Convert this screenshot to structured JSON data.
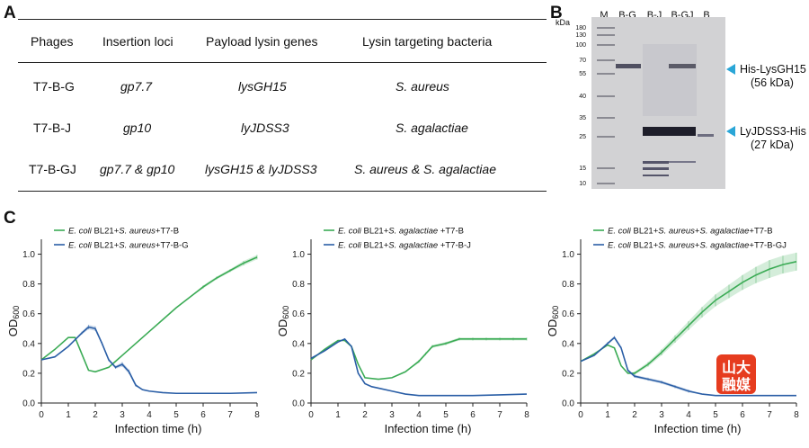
{
  "panels": {
    "a": "A",
    "b": "B",
    "c": "C"
  },
  "table": {
    "headers": [
      "Phages",
      "Insertion loci",
      "Payload lysin genes",
      "Lysin targeting bacteria"
    ],
    "rows": [
      [
        "T7-B-G",
        "gp7.7",
        "lysGH15",
        "S. aureus"
      ],
      [
        "T7-B-J",
        "gp10",
        "lyJDSS3",
        "S. agalactiae"
      ],
      [
        "T7-B-GJ",
        "gp7.7 & gp10",
        "lysGH15 & lyJDSS3",
        "S. aureus & S. agalactiae"
      ]
    ]
  },
  "gel": {
    "unit": "kDa",
    "lanes": [
      "M",
      "B-G",
      "B-J",
      "B-GJ",
      "B"
    ],
    "markers": [
      "180",
      "130",
      "100",
      "70",
      "55",
      "40",
      "35",
      "25",
      "15",
      "10"
    ],
    "annotations": [
      {
        "line1": "His-LysGH15",
        "line2": "(56 kDa)"
      },
      {
        "line1": "LyJDSS3-His",
        "line2": "(27 kDa)"
      }
    ],
    "arrow_color": "#2aa6d7"
  },
  "colors": {
    "green": "#3bab55",
    "blue": "#2a5ea6"
  },
  "logo": {
    "top": "山大",
    "bottom": "融媒"
  },
  "chart_data": [
    {
      "type": "line",
      "xlabel": "Infection time (h)",
      "ylabel": "OD600",
      "xlim": [
        0,
        8
      ],
      "ylim": [
        0,
        1.1
      ],
      "xticks": [
        "0",
        "1",
        "2",
        "3",
        "4",
        "5",
        "6",
        "7",
        "8"
      ],
      "yticks": [
        "0.0",
        "0.2",
        "0.4",
        "0.6",
        "0.8",
        "1.0"
      ],
      "series": [
        {
          "name": "E. coli BL21+S. aureus+T7-B",
          "color": "#3bab55",
          "x": [
            0,
            0.5,
            1,
            1.25,
            1.5,
            1.75,
            2,
            2.5,
            3,
            3.5,
            4,
            4.5,
            5,
            5.5,
            6,
            6.5,
            7,
            7.5,
            8
          ],
          "y": [
            0.29,
            0.36,
            0.44,
            0.44,
            0.33,
            0.22,
            0.21,
            0.24,
            0.32,
            0.4,
            0.48,
            0.56,
            0.64,
            0.71,
            0.78,
            0.84,
            0.89,
            0.94,
            0.98
          ],
          "err": [
            0,
            0,
            0,
            0,
            0,
            0,
            0,
            0,
            0,
            0,
            0,
            0,
            0,
            0,
            0.01,
            0.01,
            0.01,
            0.015,
            0.015
          ]
        },
        {
          "name": "E. coli BL21+S. aureus+T7-B-G",
          "color": "#2a5ea6",
          "x": [
            0,
            0.5,
            1,
            1.5,
            1.75,
            2,
            2.25,
            2.5,
            2.75,
            3,
            3.25,
            3.5,
            3.75,
            4,
            4.5,
            5,
            6,
            7,
            8
          ],
          "y": [
            0.29,
            0.31,
            0.38,
            0.47,
            0.51,
            0.5,
            0.4,
            0.29,
            0.24,
            0.26,
            0.21,
            0.12,
            0.09,
            0.08,
            0.07,
            0.065,
            0.065,
            0.065,
            0.07
          ],
          "err": [
            0,
            0,
            0,
            0.01,
            0.015,
            0.015,
            0.01,
            0.01,
            0.01,
            0.015,
            0.015,
            0.01,
            0,
            0,
            0,
            0,
            0,
            0,
            0
          ]
        }
      ]
    },
    {
      "type": "line",
      "xlabel": "Infection time (h)",
      "ylabel": "OD600",
      "xlim": [
        0,
        8
      ],
      "ylim": [
        0,
        1.1
      ],
      "xticks": [
        "0",
        "1",
        "2",
        "3",
        "4",
        "5",
        "6",
        "7",
        "8"
      ],
      "yticks": [
        "0.0",
        "0.2",
        "0.4",
        "0.6",
        "0.8",
        "1.0"
      ],
      "series": [
        {
          "name": "E. coli BL21+S. agalactiae +T7-B",
          "color": "#3bab55",
          "x": [
            0,
            0.5,
            1,
            1.25,
            1.5,
            1.75,
            2,
            2.5,
            3,
            3.5,
            4,
            4.25,
            4.5,
            5,
            5.5,
            6,
            6.5,
            7,
            7.5,
            8
          ],
          "y": [
            0.29,
            0.36,
            0.42,
            0.42,
            0.38,
            0.26,
            0.17,
            0.16,
            0.17,
            0.21,
            0.28,
            0.33,
            0.38,
            0.4,
            0.43,
            0.43,
            0.43,
            0.43,
            0.43,
            0.43
          ],
          "err": [
            0,
            0,
            0,
            0,
            0,
            0,
            0,
            0,
            0,
            0,
            0.01,
            0.01,
            0.01,
            0.01,
            0.01,
            0.01,
            0.01,
            0.01,
            0.01,
            0.01
          ]
        },
        {
          "name": "E. coli BL21+S. agalactiae +T7-B-J",
          "color": "#2a5ea6",
          "x": [
            0,
            0.5,
            1,
            1.25,
            1.5,
            1.75,
            2,
            2.25,
            2.5,
            3,
            3.5,
            4,
            5,
            6,
            7,
            8
          ],
          "y": [
            0.3,
            0.35,
            0.41,
            0.43,
            0.38,
            0.2,
            0.13,
            0.11,
            0.1,
            0.08,
            0.06,
            0.05,
            0.05,
            0.05,
            0.055,
            0.06
          ],
          "err": [
            0,
            0,
            0,
            0,
            0,
            0,
            0,
            0,
            0,
            0,
            0,
            0,
            0,
            0,
            0,
            0
          ]
        }
      ]
    },
    {
      "type": "line",
      "xlabel": "Infection time (h)",
      "ylabel": "OD600",
      "xlim": [
        0,
        8
      ],
      "ylim": [
        0,
        1.1
      ],
      "xticks": [
        "0",
        "1",
        "2",
        "3",
        "4",
        "5",
        "6",
        "7",
        "8"
      ],
      "yticks": [
        "0.0",
        "0.2",
        "0.4",
        "0.6",
        "0.8",
        "1.0"
      ],
      "series": [
        {
          "name": "E. coli BL21+S. aureus+S. agalactiae+T7-B",
          "color": "#3bab55",
          "x": [
            0,
            0.5,
            1,
            1.25,
            1.5,
            1.75,
            2,
            2.5,
            3,
            3.5,
            4,
            4.5,
            5,
            5.5,
            6,
            6.5,
            7,
            7.5,
            8
          ],
          "y": [
            0.28,
            0.33,
            0.39,
            0.37,
            0.25,
            0.2,
            0.2,
            0.26,
            0.34,
            0.43,
            0.52,
            0.61,
            0.69,
            0.75,
            0.81,
            0.86,
            0.9,
            0.93,
            0.95
          ],
          "err": [
            0,
            0,
            0,
            0,
            0,
            0,
            0.01,
            0.015,
            0.02,
            0.025,
            0.03,
            0.035,
            0.04,
            0.045,
            0.05,
            0.055,
            0.06,
            0.06,
            0.06
          ]
        },
        {
          "name": "E. coli BL21+S. aureus+S. agalactiae+T7-B-GJ",
          "color": "#2a5ea6",
          "x": [
            0,
            0.5,
            1,
            1.25,
            1.5,
            1.75,
            2,
            2.5,
            3,
            3.5,
            4,
            4.5,
            5,
            6,
            7,
            8
          ],
          "y": [
            0.28,
            0.32,
            0.4,
            0.44,
            0.37,
            0.22,
            0.18,
            0.16,
            0.14,
            0.11,
            0.08,
            0.06,
            0.05,
            0.05,
            0.05,
            0.05
          ],
          "err": [
            0,
            0,
            0.01,
            0.01,
            0.01,
            0.01,
            0.01,
            0.01,
            0.01,
            0.01,
            0.01,
            0,
            0,
            0,
            0,
            0
          ]
        }
      ]
    }
  ]
}
